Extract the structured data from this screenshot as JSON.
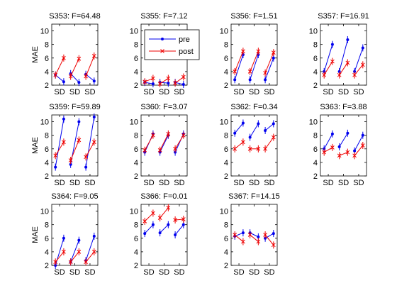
{
  "figure": {
    "y_label": "MAE",
    "legend": {
      "placement": "inside first panel of top row, second column",
      "entries": [
        "pre",
        "post"
      ]
    },
    "colors": {
      "pre": "#0000ee",
      "post": "#ee0000",
      "axis": "#000000",
      "background": "#ffffff"
    }
  },
  "chart_data": [
    {
      "type": "line",
      "title": "S353: F=64.48",
      "categories": [
        "SD",
        "SD",
        "SD"
      ],
      "ylim": [
        2,
        11
      ],
      "yticks": [
        2,
        4,
        6,
        8,
        10
      ],
      "series": [
        {
          "name": "pre",
          "marker": "dot",
          "values": [
            [
              3.5,
              2.5
            ],
            [
              3.7,
              2.4
            ],
            [
              3.6,
              2.6
            ]
          ]
        },
        {
          "name": "post",
          "marker": "cross",
          "values": [
            [
              3.5,
              6.0
            ],
            [
              3.3,
              5.9
            ],
            [
              3.3,
              6.3
            ]
          ]
        }
      ]
    },
    {
      "type": "line",
      "title": "S355: F=7.12",
      "categories": [
        "SD",
        "SD",
        "SD"
      ],
      "ylim": [
        2,
        11
      ],
      "yticks": [
        2,
        4,
        6,
        8,
        10
      ],
      "series": [
        {
          "name": "pre",
          "marker": "dot",
          "values": [
            [
              2.4,
              2.2
            ],
            [
              2.4,
              2.3
            ],
            [
              2.4,
              2.1
            ]
          ]
        },
        {
          "name": "post",
          "marker": "cross",
          "values": [
            [
              2.5,
              3.0
            ],
            [
              2.2,
              3.0
            ],
            [
              2.3,
              3.2
            ]
          ]
        }
      ]
    },
    {
      "type": "line",
      "title": "S356: F=1.51",
      "categories": [
        "SD",
        "SD",
        "SD"
      ],
      "ylim": [
        2,
        11
      ],
      "yticks": [
        2,
        4,
        6,
        8,
        10
      ],
      "series": [
        {
          "name": "pre",
          "marker": "dot",
          "values": [
            [
              2.8,
              6.5
            ],
            [
              2.8,
              6.5
            ],
            [
              2.8,
              6.0
            ]
          ]
        },
        {
          "name": "post",
          "marker": "cross",
          "values": [
            [
              4.0,
              7.0
            ],
            [
              4.0,
              7.0
            ],
            [
              3.8,
              6.8
            ]
          ]
        }
      ]
    },
    {
      "type": "line",
      "title": "S357: F=16.91",
      "categories": [
        "SD",
        "SD",
        "SD"
      ],
      "ylim": [
        2,
        11
      ],
      "yticks": [
        2,
        4,
        6,
        8,
        10
      ],
      "series": [
        {
          "name": "pre",
          "marker": "dot",
          "values": [
            [
              4.0,
              8.0
            ],
            [
              4.0,
              8.7
            ],
            [
              4.0,
              7.5
            ]
          ]
        },
        {
          "name": "post",
          "marker": "cross",
          "values": [
            [
              3.5,
              5.5
            ],
            [
              3.5,
              5.3
            ],
            [
              3.5,
              5.0
            ]
          ]
        }
      ]
    },
    {
      "type": "line",
      "title": "S359: F=59.89",
      "categories": [
        "SD",
        "SD",
        "SD"
      ],
      "ylim": [
        2,
        11
      ],
      "yticks": [
        2,
        4,
        6,
        8,
        10
      ],
      "series": [
        {
          "name": "pre",
          "marker": "dot",
          "values": [
            [
              3.3,
              10.4
            ],
            [
              3.7,
              10.0
            ],
            [
              3.3,
              10.7
            ]
          ]
        },
        {
          "name": "post",
          "marker": "cross",
          "values": [
            [
              5.0,
              7.0
            ],
            [
              4.3,
              7.3
            ],
            [
              4.8,
              7.0
            ]
          ]
        }
      ]
    },
    {
      "type": "line",
      "title": "S360: F=3.07",
      "categories": [
        "SD",
        "SD",
        "SD"
      ],
      "ylim": [
        2,
        11
      ],
      "yticks": [
        2,
        4,
        6,
        8,
        10
      ],
      "series": [
        {
          "name": "pre",
          "marker": "dot",
          "values": [
            [
              5.5,
              8.2
            ],
            [
              5.5,
              8.0
            ],
            [
              5.5,
              8.2
            ]
          ]
        },
        {
          "name": "post",
          "marker": "cross",
          "values": [
            [
              5.8,
              8.0
            ],
            [
              5.8,
              8.2
            ],
            [
              6.0,
              8.0
            ]
          ]
        }
      ]
    },
    {
      "type": "line",
      "title": "S362: F=0.34",
      "categories": [
        "SD",
        "SD",
        "SD"
      ],
      "ylim": [
        2,
        11
      ],
      "yticks": [
        2,
        4,
        6,
        8,
        10
      ],
      "series": [
        {
          "name": "pre",
          "marker": "dot",
          "values": [
            [
              8.3,
              9.8
            ],
            [
              7.7,
              9.7
            ],
            [
              8.7,
              9.7
            ]
          ]
        },
        {
          "name": "post",
          "marker": "cross",
          "values": [
            [
              6.0,
              7.0
            ],
            [
              6.0,
              6.0
            ],
            [
              6.0,
              7.7
            ]
          ]
        }
      ]
    },
    {
      "type": "line",
      "title": "S363: F=3.88",
      "categories": [
        "SD",
        "SD",
        "SD"
      ],
      "ylim": [
        2,
        11
      ],
      "yticks": [
        2,
        4,
        6,
        8,
        10
      ],
      "series": [
        {
          "name": "pre",
          "marker": "dot",
          "values": [
            [
              6.0,
              8.2
            ],
            [
              6.3,
              8.3
            ],
            [
              5.7,
              8.0
            ]
          ]
        },
        {
          "name": "post",
          "marker": "cross",
          "values": [
            [
              5.5,
              6.2
            ],
            [
              5.0,
              5.5
            ],
            [
              5.0,
              6.5
            ]
          ]
        }
      ]
    },
    {
      "type": "line",
      "title": "S364: F=9.05",
      "categories": [
        "SD",
        "SD",
        "SD"
      ],
      "ylim": [
        2,
        11
      ],
      "yticks": [
        2,
        4,
        6,
        8,
        10
      ],
      "series": [
        {
          "name": "pre",
          "marker": "dot",
          "values": [
            [
              2.0,
              6.0
            ],
            [
              2.5,
              5.7
            ],
            [
              2.7,
              6.3
            ]
          ]
        },
        {
          "name": "post",
          "marker": "cross",
          "values": [
            [
              2.5,
              4.0
            ],
            [
              2.5,
              4.0
            ],
            [
              2.5,
              4.0
            ]
          ]
        }
      ]
    },
    {
      "type": "line",
      "title": "S366: F=0.01",
      "categories": [
        "SD",
        "SD",
        "SD"
      ],
      "ylim": [
        2,
        11
      ],
      "yticks": [
        2,
        4,
        6,
        8,
        10
      ],
      "series": [
        {
          "name": "pre",
          "marker": "dot",
          "values": [
            [
              6.7,
              8.0
            ],
            [
              6.8,
              8.0
            ],
            [
              6.5,
              8.0
            ]
          ]
        },
        {
          "name": "post",
          "marker": "cross",
          "values": [
            [
              8.5,
              9.7
            ],
            [
              9.0,
              10.5
            ],
            [
              8.7,
              8.8
            ]
          ]
        }
      ]
    },
    {
      "type": "line",
      "title": "S367: F=14.15",
      "categories": [
        "SD",
        "SD",
        "SD"
      ],
      "ylim": [
        2,
        11
      ],
      "yticks": [
        2,
        4,
        6,
        8,
        10
      ],
      "series": [
        {
          "name": "pre",
          "marker": "dot",
          "values": [
            [
              6.3,
              6.8
            ],
            [
              6.8,
              6.2
            ],
            [
              6.0,
              6.7
            ]
          ]
        },
        {
          "name": "post",
          "marker": "cross",
          "values": [
            [
              6.5,
              5.5
            ],
            [
              6.5,
              5.5
            ],
            [
              6.5,
              5.0
            ]
          ]
        }
      ]
    }
  ]
}
